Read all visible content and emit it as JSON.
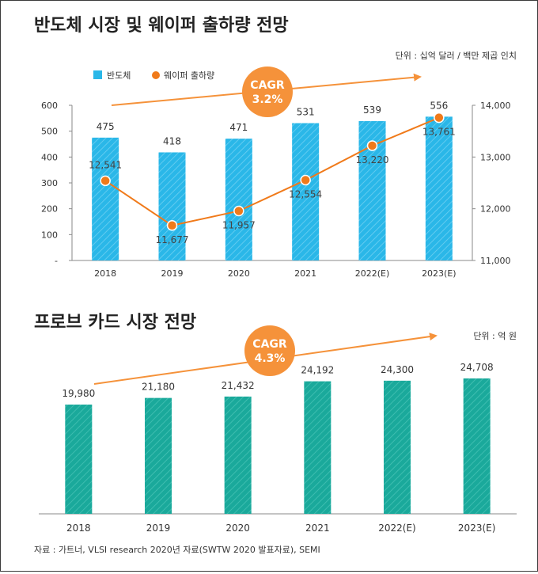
{
  "charts": [
    {
      "title": "반도체 시장 및 웨이퍼 출하량 전망",
      "unit": "단위 : 십억 달러 / 백만 제곱 인치",
      "cagr_label": "CAGR",
      "cagr_value": "3.2%",
      "colors": {
        "bar": "#2ab7e8",
        "line": "#f07a1a",
        "cagr": "#f5923a"
      }
    },
    {
      "title": "프로브 카드 시장 전망",
      "unit": "단위 : 억 원",
      "cagr_label": "CAGR",
      "cagr_value": "4.3%",
      "colors": {
        "bar": "#1aa99b",
        "cagr": "#f5923a"
      }
    }
  ],
  "source": "자료 : 가트너, VLSI research 2020년 자료(SWTW 2020 발표자료), SEMI",
  "chart_data": [
    {
      "type": "bar",
      "categories": [
        "2018",
        "2019",
        "2020",
        "2021",
        "2022(E)",
        "2023(E)"
      ],
      "series": [
        {
          "name": "반도체",
          "type": "bar",
          "axis": "left",
          "values": [
            475,
            418,
            471,
            531,
            539,
            556
          ],
          "labels": [
            "475",
            "418",
            "471",
            "531",
            "539",
            "556"
          ]
        },
        {
          "name": "웨이퍼 출하량",
          "type": "line",
          "axis": "right",
          "values": [
            12541,
            11677,
            11957,
            12554,
            13220,
            13761
          ],
          "labels": [
            "12,541",
            "11,677",
            "11,957",
            "12,554",
            "13,220",
            "13,761"
          ]
        }
      ],
      "y_left": {
        "min": 0,
        "max": 600,
        "ticks": [
          "-",
          "100",
          "200",
          "300",
          "400",
          "500",
          "600"
        ]
      },
      "y_right": {
        "min": 11000,
        "max": 14000,
        "ticks": [
          "11,000",
          "12,000",
          "13,000",
          "14,000"
        ]
      },
      "legend_position": "top-left"
    },
    {
      "type": "bar",
      "categories": [
        "2018",
        "2019",
        "2020",
        "2021",
        "2022(E)",
        "2023(E)"
      ],
      "series": [
        {
          "name": "",
          "values": [
            19980,
            21180,
            21432,
            24192,
            24300,
            24708
          ],
          "labels": [
            "19,980",
            "21,180",
            "21,432",
            "24,192",
            "24,300",
            "24,708"
          ]
        }
      ]
    }
  ]
}
